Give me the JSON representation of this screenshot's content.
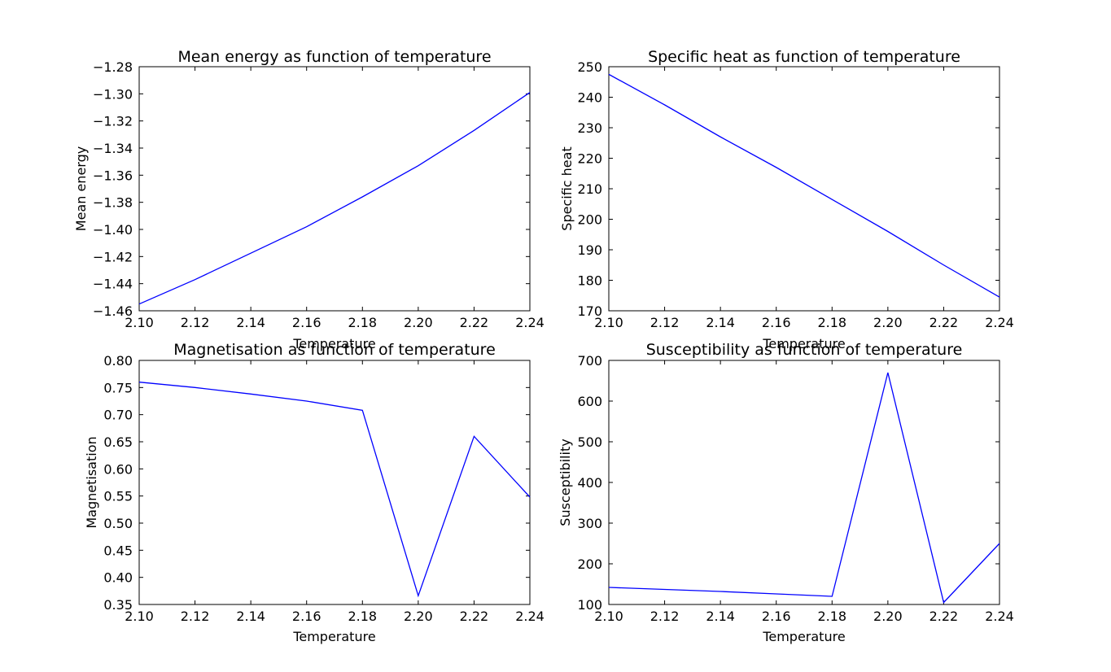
{
  "chart_data": [
    {
      "type": "line",
      "title": "Mean energy as function of temperature",
      "xlabel": "Temperature",
      "ylabel": "Mean energy",
      "xlim": [
        2.1,
        2.24
      ],
      "ylim": [
        -1.46,
        -1.28
      ],
      "xticks": [
        "2.10",
        "2.12",
        "2.14",
        "2.16",
        "2.18",
        "2.20",
        "2.22",
        "2.24"
      ],
      "yticks": [
        "−1.46",
        "−1.44",
        "−1.42",
        "−1.40",
        "−1.38",
        "−1.36",
        "−1.34",
        "−1.32",
        "−1.30",
        "−1.28"
      ],
      "x": [
        2.1,
        2.12,
        2.14,
        2.16,
        2.18,
        2.2,
        2.22,
        2.24
      ],
      "y": [
        -1.455,
        -1.437,
        -1.4175,
        -1.398,
        -1.376,
        -1.353,
        -1.327,
        -1.299
      ],
      "line_color": "#0000ff",
      "grid": false
    },
    {
      "type": "line",
      "title": "Specific heat as function of temperature",
      "xlabel": "Temperature",
      "ylabel": "Specific heat",
      "xlim": [
        2.1,
        2.24
      ],
      "ylim": [
        170,
        250
      ],
      "xticks": [
        "2.10",
        "2.12",
        "2.14",
        "2.16",
        "2.18",
        "2.20",
        "2.22",
        "2.24"
      ],
      "yticks": [
        "170",
        "180",
        "190",
        "200",
        "210",
        "220",
        "230",
        "240",
        "250"
      ],
      "x": [
        2.1,
        2.12,
        2.14,
        2.16,
        2.18,
        2.2,
        2.22,
        2.24
      ],
      "y": [
        247.5,
        237.5,
        227.0,
        217.0,
        206.5,
        196.0,
        185.0,
        174.5
      ],
      "line_color": "#0000ff",
      "grid": false
    },
    {
      "type": "line",
      "title": "Magnetisation as function of temperature",
      "xlabel": "Temperature",
      "ylabel": "Magnetisation",
      "xlim": [
        2.1,
        2.24
      ],
      "ylim": [
        0.35,
        0.8
      ],
      "xticks": [
        "2.10",
        "2.12",
        "2.14",
        "2.16",
        "2.18",
        "2.20",
        "2.22",
        "2.24"
      ],
      "yticks": [
        "0.35",
        "0.40",
        "0.45",
        "0.50",
        "0.55",
        "0.60",
        "0.65",
        "0.70",
        "0.75",
        "0.80"
      ],
      "x": [
        2.1,
        2.12,
        2.14,
        2.16,
        2.18,
        2.2,
        2.22,
        2.24
      ],
      "y": [
        0.76,
        0.75,
        0.738,
        0.725,
        0.708,
        0.366,
        0.66,
        0.548
      ],
      "line_color": "#0000ff",
      "grid": false
    },
    {
      "type": "line",
      "title": "Susceptibility as function of temperature",
      "xlabel": "Temperature",
      "ylabel": "Susceptibility",
      "xlim": [
        2.1,
        2.24
      ],
      "ylim": [
        100,
        700
      ],
      "xticks": [
        "2.10",
        "2.12",
        "2.14",
        "2.16",
        "2.18",
        "2.20",
        "2.22",
        "2.24"
      ],
      "yticks": [
        "100",
        "200",
        "300",
        "400",
        "500",
        "600",
        "700"
      ],
      "x": [
        2.1,
        2.12,
        2.14,
        2.16,
        2.18,
        2.2,
        2.22,
        2.24
      ],
      "y": [
        142,
        137,
        132,
        126,
        120,
        670,
        105,
        250
      ],
      "line_color": "#0000ff",
      "grid": false
    }
  ]
}
